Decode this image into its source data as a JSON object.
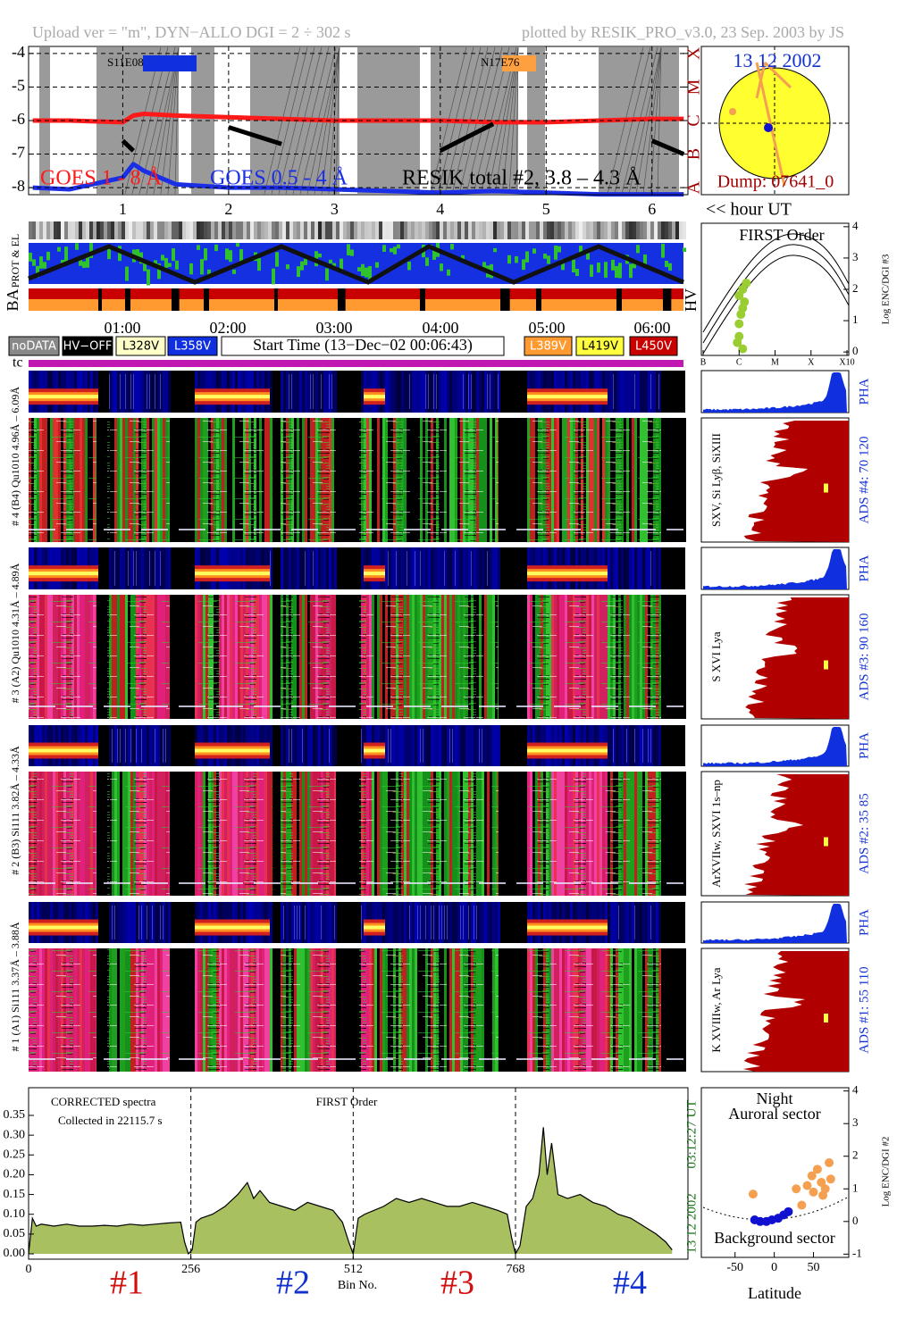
{
  "header": {
    "upload": "Upload ver = \"m\", DYN−ALLO DGI =   2 ÷ 302 s",
    "plotted": "plotted by RESIK_PRO_v3.0, 23 Sep. 2003 by JS"
  },
  "sun": {
    "date": "13 12 2002",
    "dump": "Dump: 07641_0"
  },
  "strips": {
    "prot": "PROT & EL",
    "ba": "BA",
    "hv": "HV",
    "tc": "tc"
  },
  "times": [
    "01:00",
    "02:00",
    "03:00",
    "04:00",
    "05:00",
    "06:00"
  ],
  "legend": {
    "nodata": "noDATA",
    "hvoff": "HV−OFF",
    "l328": "L328V",
    "l358": "L358V",
    "start": "Start Time (13−Dec−02 00:06:43)",
    "l389": "L389V",
    "l419": "L419V",
    "l450": "L450V"
  },
  "channels": [
    {
      "label": "# 4 (B4) Qu1010 4.96Å – 6.09Å",
      "lines": "SXV, Si Lyβ, SiXIII",
      "ads": "ADS #4:  70 120",
      "pha": "PHA"
    },
    {
      "label": "# 3 (A2) Qu1010 4.31Å – 4.89Å",
      "lines": "S XVI Lya",
      "ads": "ADS #3:  90 160",
      "pha": "PHA"
    },
    {
      "label": "# 2 (B3) Si111 3.82Å – 4.33Å",
      "lines": "ArXVIIw, SXVI 1s–np",
      "ads": "ADS #2:  35 85",
      "pha": "PHA"
    },
    {
      "label": "# 1 (A1) Si111 3.37Å – 3.88Å",
      "lines": "K XVIIIw, Ar Lya",
      "ads": "ADS #1:  55 110",
      "pha": "PHA"
    }
  ],
  "chart_data": [
    {
      "type": "line",
      "x_label": "<< hour UT",
      "annotations": [
        "S11E08",
        "N17E76"
      ],
      "grid": true,
      "x": [
        0.15,
        0.5,
        1.0,
        1.1,
        1.2,
        1.5,
        2.0,
        2.5,
        3.0,
        3.5,
        4.0,
        4.5,
        5.0,
        5.5,
        6.0,
        6.3
      ],
      "series": [
        {
          "name": "GOES 1 - 8 Å",
          "color": "#ff1a1a",
          "values": [
            -6.0,
            -6.0,
            -6.05,
            -5.85,
            -5.8,
            -5.85,
            -5.9,
            -5.95,
            -6.0,
            -6.0,
            -6.0,
            -6.05,
            -6.05,
            -6.0,
            -5.95,
            -5.95
          ]
        },
        {
          "name": "GOES 0.5 - 4 Å",
          "color": "#1a2ee6",
          "values": [
            -8.0,
            -8.05,
            -7.7,
            -7.3,
            -7.5,
            -7.9,
            -8.0,
            -8.0,
            -8.05,
            -8.1,
            -8.15,
            -8.1,
            -8.15,
            -8.2,
            -8.2,
            -8.2
          ]
        },
        {
          "name": "RESIK total #2, 3.8 – 4.3 Å",
          "color": "#000000",
          "values": [
            null,
            null,
            -6.6,
            -6.9,
            null,
            null,
            -6.2,
            -6.7,
            null,
            null,
            -6.9,
            -6.1,
            null,
            null,
            -6.6,
            -7.0
          ]
        }
      ],
      "xlim": [
        0.11,
        6.34
      ],
      "xticks": [
        1,
        2,
        3,
        4,
        5,
        6
      ],
      "ylim": [
        -8.21,
        -3.79
      ],
      "yticks": [
        -4,
        -5,
        -6,
        -7,
        -8
      ],
      "y2lim": [
        -8.21,
        -3.79
      ],
      "y2ticks": [
        {
          "value": -4,
          "label": "X"
        },
        {
          "value": -5,
          "label": "M"
        },
        {
          "value": -6,
          "label": "C"
        },
        {
          "value": -7,
          "label": "B"
        },
        {
          "value": -8,
          "label": "A"
        }
      ]
    },
    {
      "type": "scatter",
      "title": "FIRST Order",
      "y_label": "Log ENC/DGI #3",
      "grid": false,
      "series": [
        {
          "color": "#9acd32",
          "x": [
            -6,
            -6,
            -5.95,
            -5.9,
            -5.85,
            -6,
            -5.9,
            -5.8,
            -6.05,
            -5.9
          ],
          "values": [
            0.5,
            0.9,
            1.2,
            1.4,
            1.6,
            1.8,
            2.0,
            2.2,
            0.3,
            0.1
          ]
        }
      ],
      "xlim": [
        -7.05,
        -2.95
      ],
      "xticks": [
        {
          "value": -7,
          "label": "B"
        },
        {
          "value": -6,
          "label": "C"
        },
        {
          "value": -5,
          "label": "M"
        },
        {
          "value": -4,
          "label": "X"
        },
        {
          "value": -3,
          "label": "X10"
        }
      ],
      "ylim": [
        -0.11,
        4.11
      ],
      "yticks": [
        0,
        1,
        2,
        3,
        4
      ]
    },
    {
      "type": "area",
      "title": "FIRST Order",
      "annotations": [
        "CORRECTED spectra",
        "Collected in 22115.7 s"
      ],
      "side_labels": [
        "03:12:27 UT",
        "13 12 2002"
      ],
      "x_label": "Bin No.",
      "color": "#a8c060",
      "grid": "x",
      "detectors": [
        {
          "name": "#1",
          "color": "#d01010"
        },
        {
          "name": "#2",
          "color": "#1030d0"
        },
        {
          "name": "#3",
          "color": "#d01010"
        },
        {
          "name": "#4",
          "color": "#1030d0"
        }
      ],
      "x": [
        0,
        6,
        12,
        20,
        40,
        60,
        80,
        100,
        120,
        140,
        160,
        180,
        200,
        220,
        240,
        246,
        252,
        258,
        264,
        272,
        290,
        310,
        330,
        345,
        355,
        365,
        380,
        400,
        420,
        440,
        460,
        480,
        495,
        505,
        512,
        520,
        530,
        545,
        560,
        580,
        600,
        620,
        640,
        660,
        680,
        700,
        720,
        740,
        755,
        762,
        768,
        775,
        785,
        795,
        805,
        812,
        818,
        825,
        835,
        850,
        870,
        890,
        910,
        930,
        950,
        970,
        990,
        1005,
        1015
      ],
      "values": [
        0.0,
        0.09,
        0.07,
        0.075,
        0.07,
        0.075,
        0.07,
        0.07,
        0.072,
        0.07,
        0.075,
        0.072,
        0.075,
        0.078,
        0.08,
        0.03,
        0.0,
        0.01,
        0.08,
        0.09,
        0.1,
        0.12,
        0.15,
        0.18,
        0.14,
        0.16,
        0.13,
        0.12,
        0.11,
        0.13,
        0.12,
        0.11,
        0.08,
        0.03,
        0.0,
        0.09,
        0.1,
        0.11,
        0.12,
        0.14,
        0.13,
        0.14,
        0.13,
        0.12,
        0.12,
        0.13,
        0.12,
        0.11,
        0.1,
        0.04,
        0.0,
        0.02,
        0.12,
        0.14,
        0.2,
        0.32,
        0.2,
        0.28,
        0.15,
        0.14,
        0.15,
        0.13,
        0.12,
        0.1,
        0.09,
        0.07,
        0.05,
        0.03,
        0.01
      ],
      "xlim": [
        0,
        1040
      ],
      "xticks": [
        0,
        256,
        512,
        768
      ],
      "ylim": [
        -0.0135,
        0.42
      ],
      "yticks": [
        {
          "value": 0,
          "label": "0.00"
        },
        0.05,
        {
          "value": 0.1,
          "label": "0.10"
        },
        0.15,
        {
          "value": 0.2,
          "label": "0.20"
        },
        0.25,
        {
          "value": 0.3,
          "label": "0.30"
        },
        0.35
      ]
    },
    {
      "type": "scatter",
      "title": "Night",
      "annotations": [
        "Auroral sector",
        "Background sector"
      ],
      "x_label": "Latitude",
      "y_label": "Log ENC/DGI #2",
      "grid": false,
      "series": [
        {
          "color": "#f4a050",
          "x": [
            -27,
            28,
            35,
            42,
            48,
            50,
            55,
            60,
            62,
            65,
            70,
            72
          ],
          "values": [
            0.84,
            1.0,
            0.5,
            1.1,
            1.4,
            0.9,
            1.6,
            1.2,
            0.8,
            1.0,
            1.8,
            1.3
          ]
        },
        {
          "color": "#1010d0",
          "x": [
            -25,
            -18,
            -10,
            -3,
            5,
            12,
            18
          ],
          "values": [
            0.05,
            0.0,
            0.0,
            0.05,
            0.1,
            0.2,
            0.3
          ]
        }
      ],
      "xlim": [
        -93,
        95
      ],
      "xticks": [
        -50,
        0,
        50
      ],
      "ylim": [
        -1.1,
        4.1
      ],
      "yticks": [
        -1,
        0,
        1,
        2,
        3,
        4
      ]
    }
  ]
}
